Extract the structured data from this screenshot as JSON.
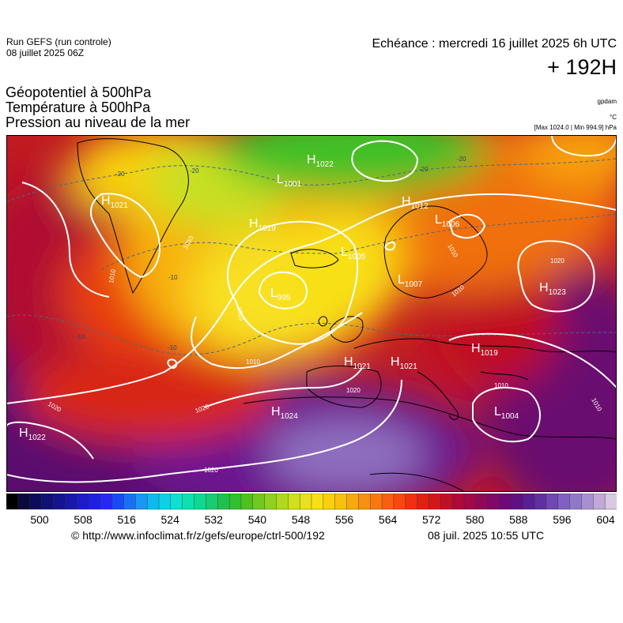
{
  "header": {
    "run_line1": "Run GEFS (run controle)",
    "run_line2": "08 juillet 2025 06Z",
    "echeance": "Echéance : mercredi 16 juillet 2025 6h UTC",
    "lead_time": "+ 192H"
  },
  "parameters": [
    "Géopotentiel à 500hPa",
    "Température à 500hPa",
    "Pression au niveau de la mer"
  ],
  "units": {
    "geopotential": "gpdam",
    "temperature": "°C",
    "pressure": "[Max 1024.0 | Min 994.9] hPa"
  },
  "map": {
    "pressure_centers": [
      {
        "type": "H",
        "value": "1022"
      },
      {
        "type": "H",
        "value": "1021"
      },
      {
        "type": "L",
        "value": "1001"
      },
      {
        "type": "H",
        "value": "1019"
      },
      {
        "type": "L",
        "value": "995"
      },
      {
        "type": "L",
        "value": "1005"
      },
      {
        "type": "H",
        "value": "1012"
      },
      {
        "type": "L",
        "value": "1006"
      },
      {
        "type": "L",
        "value": "1007"
      },
      {
        "type": "H",
        "value": "1023"
      },
      {
        "type": "H",
        "value": "1019"
      },
      {
        "type": "H",
        "value": "1021"
      },
      {
        "type": "H",
        "value": "1021"
      },
      {
        "type": "H",
        "value": "1024"
      },
      {
        "type": "L",
        "value": "1004"
      },
      {
        "type": "H",
        "value": "1022"
      }
    ],
    "isobar_labels": [
      "1010",
      "1010",
      "1020",
      "1020",
      "1020",
      "1010",
      "1010",
      "1020",
      "1010",
      "1020",
      "1010",
      "1010",
      "1010"
    ],
    "temperature_labels": [
      "-20",
      "-20",
      "-20",
      "-10",
      "-10",
      "-10",
      "-20"
    ]
  },
  "colorscale": {
    "tick_labels": [
      "500",
      "508",
      "516",
      "524",
      "532",
      "540",
      "548",
      "556",
      "564",
      "572",
      "580",
      "588",
      "596",
      "604"
    ],
    "colors": [
      "#000000",
      "#0a0a3c",
      "#0c0c5a",
      "#101075",
      "#141490",
      "#1818aa",
      "#1c1cc8",
      "#2020e0",
      "#2828f5",
      "#1a4af5",
      "#1a70f5",
      "#1a96f5",
      "#10b8f0",
      "#10d0e8",
      "#10e0d0",
      "#10e0b0",
      "#10d890",
      "#18cc70",
      "#20c050",
      "#30c030",
      "#50c020",
      "#70c820",
      "#90d020",
      "#b0d820",
      "#d0e020",
      "#e8e020",
      "#f8e018",
      "#f8d010",
      "#f8c010",
      "#f8a810",
      "#f89010",
      "#f87810",
      "#f86010",
      "#f84810",
      "#f03010",
      "#e02010",
      "#d01818",
      "#c01028",
      "#b00838",
      "#a00848",
      "#900858",
      "#800868",
      "#700878",
      "#601080",
      "#582090",
      "#6030a0",
      "#7048b0",
      "#8060c0",
      "#9078c8",
      "#a890d0",
      "#c0a8d8",
      "#d8c8e0"
    ]
  },
  "footer": {
    "url": "© http://www.infoclimat.fr/z/gefs/europe/ctrl-500/192",
    "timestamp": "08 juil. 2025 10:55 UTC"
  }
}
